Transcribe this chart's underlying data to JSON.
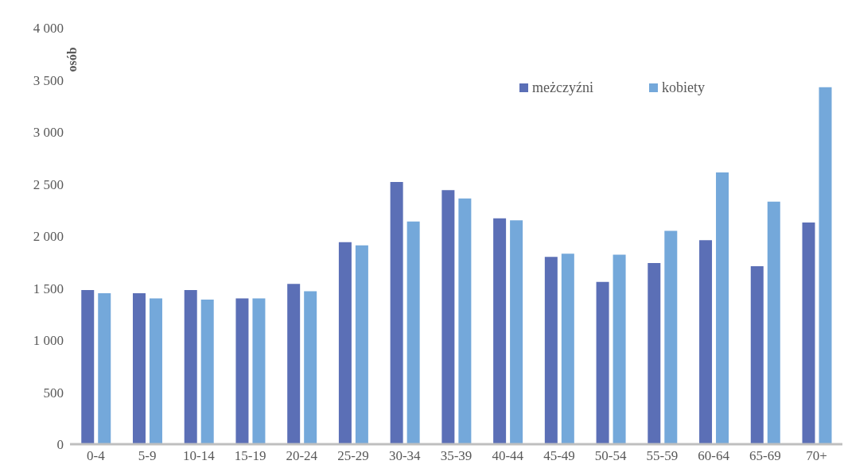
{
  "chart_data": {
    "type": "bar",
    "ylabel": "osób",
    "categories": [
      "0-4",
      "5-9",
      "10-14",
      "15-19",
      "20-24",
      "25-29",
      "30-34",
      "35-39",
      "40-44",
      "45-49",
      "50-54",
      "55-59",
      "60-64",
      "65-69",
      "70+"
    ],
    "series": [
      {
        "name": "meżczyźni",
        "color": "#5b6fb6",
        "values": [
          1480,
          1450,
          1480,
          1400,
          1540,
          1940,
          2520,
          2440,
          2170,
          1800,
          1560,
          1740,
          1960,
          1710,
          2130
        ]
      },
      {
        "name": "kobiety",
        "color": "#74a8da",
        "values": [
          1450,
          1400,
          1390,
          1400,
          1470,
          1910,
          2140,
          2360,
          2150,
          1830,
          1820,
          2050,
          2610,
          2330,
          3430
        ]
      }
    ],
    "ylim": [
      0,
      4000
    ],
    "yticks": [
      0,
      500,
      {
        "value": 1000,
        "label": "1 000"
      },
      {
        "value": 1500,
        "label": "1 500"
      },
      {
        "value": 2000,
        "label": "2 000"
      },
      {
        "value": 2500,
        "label": "2 500"
      },
      {
        "value": 3000,
        "label": "3 000"
      },
      {
        "value": 3500,
        "label": "3 500"
      },
      {
        "value": 4000,
        "label": "4 000"
      }
    ],
    "grid": false,
    "legend": "top"
  }
}
